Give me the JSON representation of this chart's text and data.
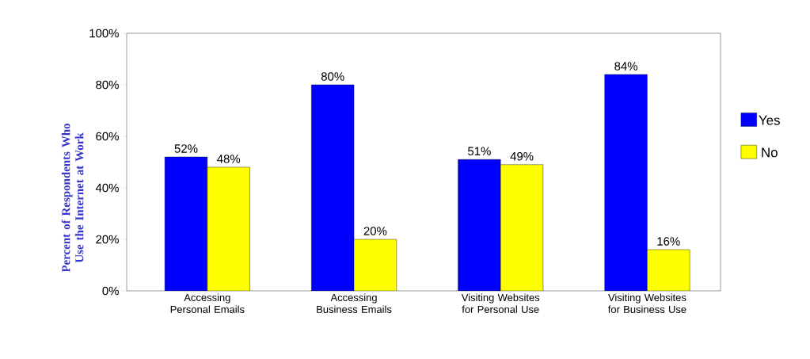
{
  "chart_data": {
    "type": "bar",
    "ylabel": "Percent of Respondents Who Use the Internet at Work",
    "categories": [
      "Accessing Personal Emails",
      "Accessing Business Emails",
      "Visiting Websites for Personal Use",
      "Visiting Websites for Business Use"
    ],
    "series": [
      {
        "name": "Yes",
        "color": "#0000ff",
        "values": [
          52,
          80,
          51,
          84
        ],
        "value_labels": [
          "52%",
          "80%",
          "51%",
          "84%"
        ]
      },
      {
        "name": "No",
        "color": "#ffff00",
        "values": [
          48,
          20,
          49,
          16
        ],
        "value_labels": [
          "48%",
          "20%",
          "49%",
          "16%"
        ]
      }
    ],
    "ylim": [
      0,
      100
    ],
    "yticks": [
      {
        "value": 0,
        "label": "0%"
      },
      {
        "value": 20,
        "label": "20%"
      },
      {
        "value": 40,
        "label": "40%"
      },
      {
        "value": 60,
        "label": "60%"
      },
      {
        "value": 80,
        "label": "80%"
      },
      {
        "value": 100,
        "label": "100%"
      }
    ],
    "grid": false,
    "legend": "right"
  }
}
